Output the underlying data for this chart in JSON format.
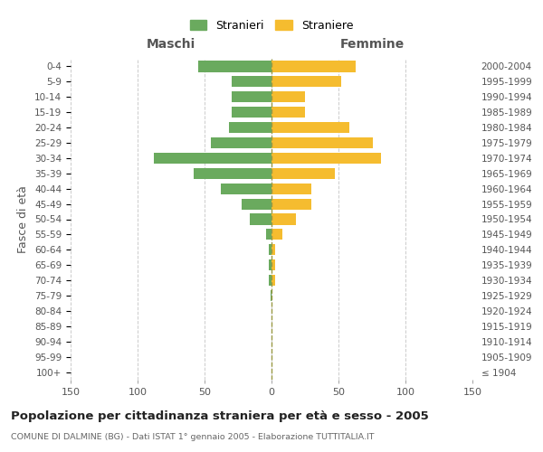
{
  "age_groups": [
    "100+",
    "95-99",
    "90-94",
    "85-89",
    "80-84",
    "75-79",
    "70-74",
    "65-69",
    "60-64",
    "55-59",
    "50-54",
    "45-49",
    "40-44",
    "35-39",
    "30-34",
    "25-29",
    "20-24",
    "15-19",
    "10-14",
    "5-9",
    "0-4"
  ],
  "birth_years": [
    "≤ 1904",
    "1905-1909",
    "1910-1914",
    "1915-1919",
    "1920-1924",
    "1925-1929",
    "1930-1934",
    "1935-1939",
    "1940-1944",
    "1945-1949",
    "1950-1954",
    "1955-1959",
    "1960-1964",
    "1965-1969",
    "1970-1974",
    "1975-1979",
    "1980-1984",
    "1985-1989",
    "1990-1994",
    "1995-1999",
    "2000-2004"
  ],
  "males": [
    0,
    0,
    0,
    0,
    0,
    1,
    2,
    2,
    2,
    4,
    16,
    22,
    38,
    58,
    88,
    45,
    32,
    30,
    30,
    30,
    55
  ],
  "females": [
    0,
    0,
    0,
    0,
    0,
    0,
    3,
    3,
    3,
    8,
    18,
    30,
    30,
    47,
    82,
    76,
    58,
    25,
    25,
    52,
    63
  ],
  "male_color": "#6aaa5e",
  "female_color": "#f5bc2f",
  "title": "Popolazione per cittadinanza straniera per età e sesso - 2005",
  "subtitle": "COMUNE DI DALMINE (BG) - Dati ISTAT 1° gennaio 2005 - Elaborazione TUTTITALIA.IT",
  "label_maschi": "Maschi",
  "label_femmine": "Femmine",
  "ylabel_left": "Fasce di età",
  "legend_males": "Stranieri",
  "legend_females": "Straniere",
  "xlim": 150,
  "background_color": "#ffffff",
  "grid_color": "#cccccc"
}
